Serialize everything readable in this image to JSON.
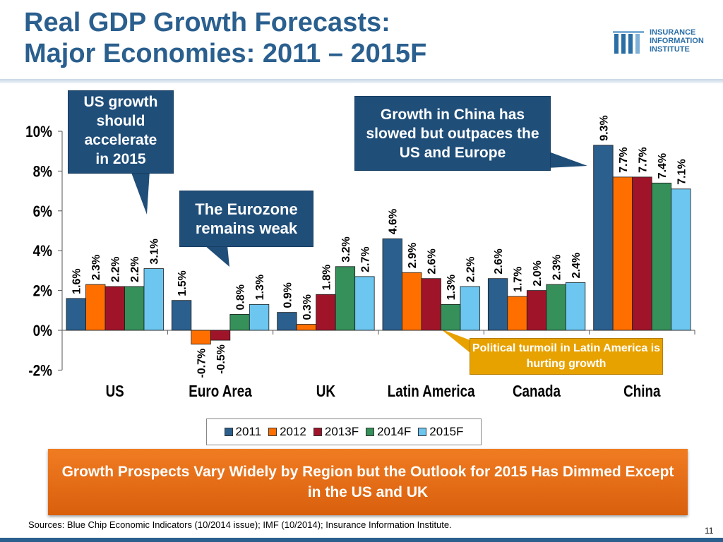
{
  "slide": {
    "title_line1": "Real GDP Growth Forecasts:",
    "title_line2": "Major Economies: 2011 – 2015F",
    "logo_line1": "INSURANCE",
    "logo_line2": "INFORMATION",
    "logo_line3": "INSTITUTE",
    "callout_us": "US growth\nshould\naccelerate\nin 2015",
    "callout_euro": "The Eurozone remains weak",
    "callout_china": "Growth in China has slowed but outpaces the US and Europe",
    "callout_latam": "Political turmoil in Latin America is hurting growth",
    "banner": "Growth Prospects Vary Widely by Region but the Outlook for 2015 Has Dimmed Except in the US and UK",
    "sources": "Sources:  Blue Chip Economic Indicators (10/2014 issue); IMF (10/2014); Insurance Information Institute.",
    "page_number": "11"
  },
  "colors": {
    "title": "#2a5f8e",
    "callout_blue": "#1f4e79",
    "callout_gold": "#e8a200",
    "banner_orange": "#e36a12"
  },
  "chart_data": {
    "type": "bar",
    "title": "Real GDP Growth Forecasts: Major Economies: 2011 – 2015F",
    "categories": [
      "US",
      "Euro Area",
      "UK",
      "Latin America",
      "Canada",
      "China"
    ],
    "series": [
      {
        "name": "2011",
        "color": "#2a5f8e",
        "values": [
          1.6,
          1.5,
          0.9,
          4.6,
          2.6,
          9.3
        ]
      },
      {
        "name": "2012",
        "color": "#ff6f00",
        "values": [
          2.3,
          -0.7,
          0.3,
          2.9,
          1.7,
          7.7
        ]
      },
      {
        "name": "2013F",
        "color": "#a0142a",
        "values": [
          2.2,
          -0.5,
          1.8,
          2.6,
          2.0,
          7.7
        ]
      },
      {
        "name": "2014F",
        "color": "#35905a",
        "values": [
          2.2,
          0.8,
          3.2,
          1.3,
          2.3,
          7.4
        ]
      },
      {
        "name": "2015F",
        "color": "#6cc6ef",
        "values": [
          3.1,
          1.3,
          2.7,
          2.2,
          2.4,
          7.1
        ]
      }
    ],
    "data_labels": [
      [
        "1.6%",
        "1.5%",
        "0.9%",
        "4.6%",
        "2.6%",
        "9.3%"
      ],
      [
        "2.3%",
        "-0.7%",
        "0.3%",
        "2.9%",
        "1.7%",
        "7.7%"
      ],
      [
        "2.2%",
        "-0.5%",
        "1.8%",
        "2.6%",
        "2.0%",
        "7.7%"
      ],
      [
        "2.2%",
        "0.8%",
        "3.2%",
        "1.3%",
        "2.3%",
        "7.4%"
      ],
      [
        "3.1%",
        "1.3%",
        "2.7%",
        "2.2%",
        "2.4%",
        "7.1%"
      ]
    ],
    "yticks": [
      -2,
      0,
      2,
      4,
      6,
      8,
      10
    ],
    "ytick_labels": [
      "-2%",
      "0%",
      "2%",
      "4%",
      "6%",
      "8%",
      "10%"
    ],
    "ylim": [
      -2,
      10
    ],
    "xlabel": "",
    "ylabel": "",
    "legend": "bottom"
  }
}
